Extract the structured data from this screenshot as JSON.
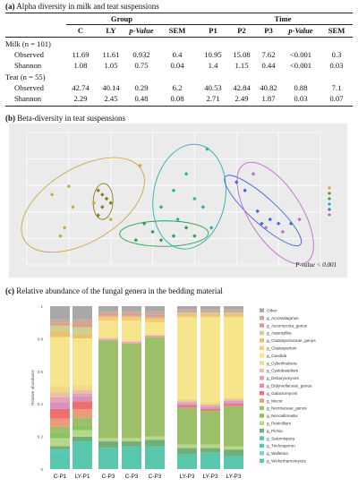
{
  "panel_a": {
    "title_letter": "(a)",
    "title": " Alpha diversity in milk and teat suspensions",
    "group_header": "Group",
    "time_header": "Time",
    "columns": [
      "C",
      "LY",
      "p-Value",
      "SEM",
      "P1",
      "P2",
      "P3",
      "p-Value",
      "SEM"
    ],
    "sections": [
      {
        "label": "Milk (n = 101)",
        "rows": [
          {
            "name": "Observed",
            "values": [
              "11.69",
              "11.61",
              "0.932",
              "0.4",
              "10.95",
              "15.08",
              "7.62",
              "<0.001",
              "0.3"
            ]
          },
          {
            "name": "Shannon",
            "values": [
              "1.08",
              "1.05",
              "0.75",
              "0.04",
              "1.4",
              "1.15",
              "0.44",
              "<0.001",
              "0.03"
            ]
          }
        ]
      },
      {
        "label": "Teat (n = 55)",
        "rows": [
          {
            "name": "Observed",
            "values": [
              "42.74",
              "40.14",
              "0.29",
              "6.2",
              "40.53",
              "42.84",
              "40.82",
              "0.88",
              "7.1"
            ]
          },
          {
            "name": "Shannon",
            "values": [
              "2.29",
              "2.45",
              "0.48",
              "0.08",
              "2.71",
              "2.49",
              "1.87",
              "0.03",
              "0.07"
            ]
          }
        ]
      }
    ]
  },
  "panel_b": {
    "title_letter": "(b)",
    "title": " Beta-diversity in teat suspensions",
    "pvalue_text": "P-value < 0.001",
    "colors": [
      "#c8a845",
      "#8a7a1a",
      "#2ca04c",
      "#20b2aa",
      "#4466dd",
      "#c06ad0"
    ],
    "groups_points": [
      [
        [
          -0.24,
          0.05
        ],
        [
          -0.2,
          0.07
        ],
        [
          -0.19,
          0.02
        ],
        [
          -0.21,
          -0.03
        ],
        [
          -0.14,
          0.03
        ],
        [
          -0.1,
          -0.01
        ],
        [
          -0.22,
          -0.05
        ],
        [
          -0.03,
          0.12
        ]
      ],
      [
        [
          -0.12,
          0.05
        ],
        [
          -0.11,
          0.04
        ],
        [
          -0.12,
          0.02
        ],
        [
          -0.13,
          0.0
        ],
        [
          -0.13,
          0.06
        ],
        [
          -0.1,
          0.03
        ]
      ],
      [
        [
          -0.02,
          -0.02
        ],
        [
          0.0,
          -0.04
        ],
        [
          0.02,
          -0.06
        ],
        [
          0.05,
          -0.05
        ],
        [
          -0.04,
          -0.06
        ],
        [
          0.08,
          -0.03
        ],
        [
          0.1,
          -0.05
        ]
      ],
      [
        [
          0.05,
          0.06
        ],
        [
          0.08,
          0.1
        ],
        [
          0.1,
          0.04
        ],
        [
          0.12,
          0.02
        ],
        [
          0.06,
          -0.01
        ],
        [
          0.14,
          -0.03
        ],
        [
          0.02,
          0.02
        ],
        [
          0.13,
          0.16
        ]
      ],
      [
        [
          0.2,
          0.08
        ],
        [
          0.22,
          0.06
        ],
        [
          0.26,
          -0.02
        ],
        [
          0.28,
          -0.01
        ],
        [
          0.3,
          -0.02
        ],
        [
          0.33,
          -0.02
        ],
        [
          0.25,
          0.01
        ]
      ],
      [
        [
          0.24,
          0.1
        ],
        [
          0.27,
          -0.03
        ],
        [
          0.31,
          -0.04
        ],
        [
          0.35,
          -0.01
        ]
      ]
    ]
  },
  "panel_c": {
    "title_letter": "(c)",
    "title": " Relative abundance of the fungal genera in the bedding material",
    "ylabel": "Relative abundance",
    "yticks": [
      "0",
      "0.2",
      "0.4",
      "0.6",
      "0.8",
      "1"
    ],
    "bar_labels": [
      "C-P1",
      "LY-P1",
      "C-P3",
      "C-P3",
      "C-P3",
      "LY-P3",
      "LY-P3",
      "LY-P3"
    ],
    "legend": [
      "Other",
      "g_Acrostalagmus",
      "g_Ascomycota_genus",
      "g_Aspergillus",
      "g_Cladosporiaceae_genus",
      "g_Cladosporium",
      "g_Candida",
      "g_Cyberlindnera",
      "g_Cystobasidium",
      "g_Debaryomyces",
      "g_Didymellaceae_genus",
      "g_Galactomyces",
      "g_Mucor",
      "g_Nectriaceae_genus",
      "g_Neocallimastix",
      "g_Penicillium",
      "g_Pichia",
      "g_Saturnispora",
      "g_Trichosporon",
      "g_Wallemia",
      "g_Wickerhamomyces"
    ],
    "colors": [
      "#a8a8a8",
      "#c9a99b",
      "#d9a08e",
      "#cfcf8f",
      "#e7c16e",
      "#f2d06e",
      "#f6e58a",
      "#f3d88a",
      "#ebc0a8",
      "#e6a0b8",
      "#d98fbf",
      "#ee6f6f",
      "#e89c7a",
      "#9cc06a",
      "#86c45c",
      "#b7d88a",
      "#6fb07a",
      "#5fc7a5",
      "#4fc8b6",
      "#7fd0c0",
      "#59c7ad"
    ],
    "bars": [
      [
        0.08,
        0.02,
        0.02,
        0.03,
        0.04,
        0.0,
        0.3,
        0.04,
        0.03,
        0.03,
        0.04,
        0.06,
        0.05,
        0.04,
        0.03,
        0.05,
        0.02,
        0.0,
        0.02,
        0.0,
        0.1
      ],
      [
        0.08,
        0.02,
        0.03,
        0.04,
        0.03,
        0.0,
        0.29,
        0.03,
        0.02,
        0.02,
        0.03,
        0.05,
        0.05,
        0.05,
        0.03,
        0.04,
        0.03,
        0.0,
        0.02,
        0.0,
        0.15
      ],
      [
        0.03,
        0.01,
        0.02,
        0.0,
        0.01,
        0.02,
        0.1,
        0.01,
        0.0,
        0.01,
        0.0,
        0.0,
        0.0,
        0.6,
        0.0,
        0.02,
        0.04,
        0.0,
        0.0,
        0.0,
        0.13
      ],
      [
        0.03,
        0.01,
        0.02,
        0.0,
        0.01,
        0.02,
        0.12,
        0.01,
        0.0,
        0.01,
        0.0,
        0.0,
        0.0,
        0.58,
        0.0,
        0.02,
        0.03,
        0.0,
        0.0,
        0.0,
        0.14
      ],
      [
        0.03,
        0.02,
        0.02,
        0.0,
        0.01,
        0.02,
        0.07,
        0.01,
        0.0,
        0.01,
        0.0,
        0.0,
        0.0,
        0.61,
        0.0,
        0.02,
        0.04,
        0.0,
        0.0,
        0.0,
        0.14
      ],
      [
        0.02,
        0.01,
        0.01,
        0.01,
        0.01,
        0.01,
        0.5,
        0.01,
        0.01,
        0.01,
        0.01,
        0.01,
        0.0,
        0.23,
        0.0,
        0.02,
        0.04,
        0.0,
        0.0,
        0.0,
        0.09
      ],
      [
        0.02,
        0.01,
        0.01,
        0.01,
        0.01,
        0.01,
        0.52,
        0.01,
        0.01,
        0.01,
        0.01,
        0.01,
        0.0,
        0.21,
        0.0,
        0.02,
        0.03,
        0.0,
        0.0,
        0.0,
        0.1
      ],
      [
        0.02,
        0.01,
        0.01,
        0.01,
        0.01,
        0.01,
        0.49,
        0.01,
        0.01,
        0.01,
        0.01,
        0.01,
        0.0,
        0.25,
        0.0,
        0.02,
        0.04,
        0.0,
        0.0,
        0.0,
        0.08
      ]
    ]
  }
}
